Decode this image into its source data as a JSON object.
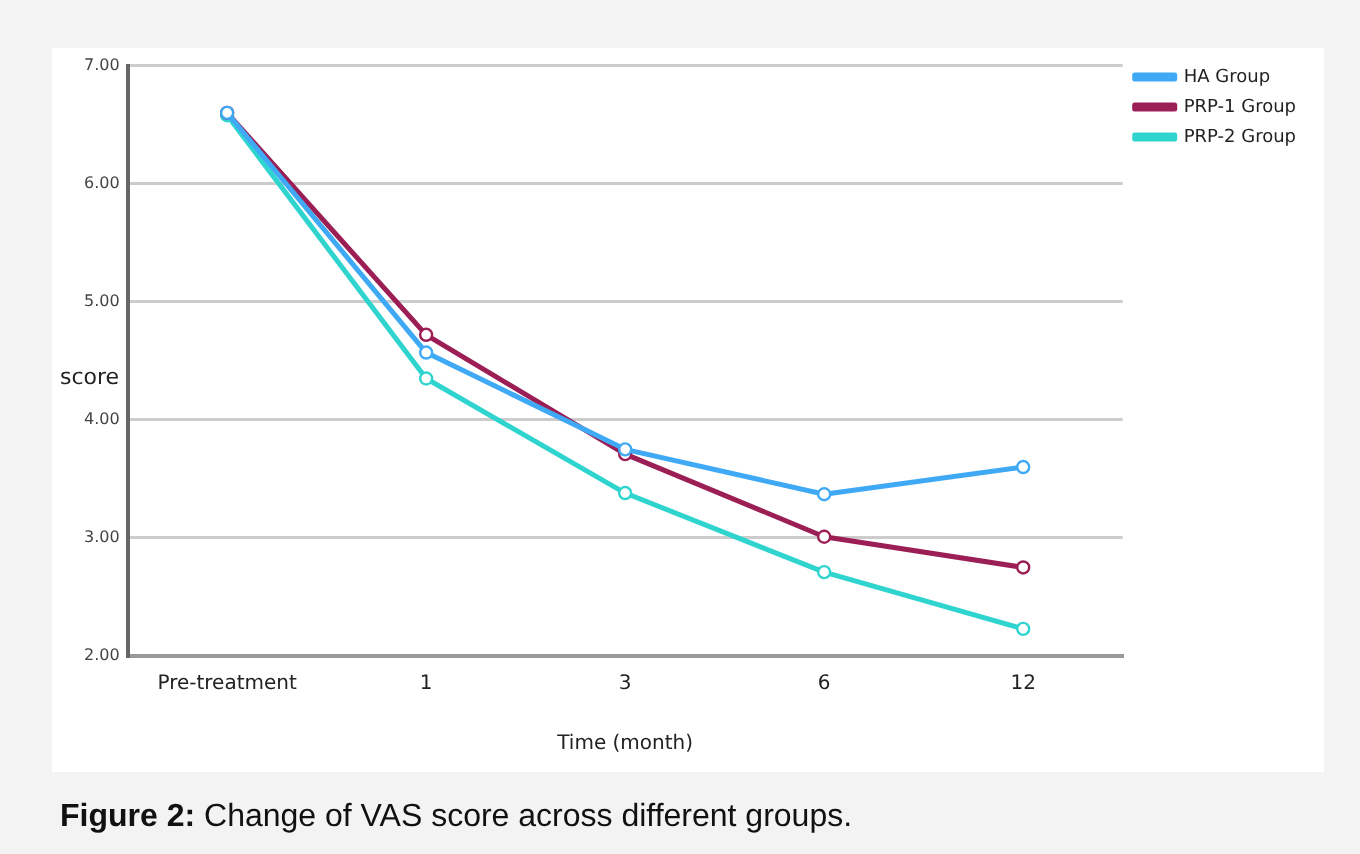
{
  "chart_data": {
    "type": "line",
    "xlabel": "Time (month)",
    "ylabel": "score",
    "categories": [
      "Pre-treatment",
      "1",
      "3",
      "6",
      "12"
    ],
    "series": [
      {
        "name": "HA Group",
        "color": "#3fa9f5",
        "values": [
          6.6,
          4.57,
          3.75,
          3.37,
          3.6
        ]
      },
      {
        "name": "PRP-1 Group",
        "color": "#9b1f55",
        "values": [
          6.6,
          4.72,
          3.71,
          3.01,
          2.75
        ]
      },
      {
        "name": "PRP-2 Group",
        "color": "#2fd4cf",
        "values": [
          6.58,
          4.35,
          3.38,
          2.71,
          2.23
        ]
      }
    ],
    "ylim": [
      2,
      7
    ],
    "yticks": [
      {
        "value": 2,
        "label": "2.00"
      },
      {
        "value": 3,
        "label": "3.00"
      },
      {
        "value": 4,
        "label": "4.00"
      },
      {
        "value": 5,
        "label": "5.00"
      },
      {
        "value": 6,
        "label": "6.00"
      },
      {
        "value": 7,
        "label": "7.00"
      }
    ],
    "grid": "y",
    "legend": "top right",
    "marker": "circle",
    "line_style": "solid",
    "annotations": [
      "Figure 2: Change of VAS score across different groups."
    ]
  }
}
